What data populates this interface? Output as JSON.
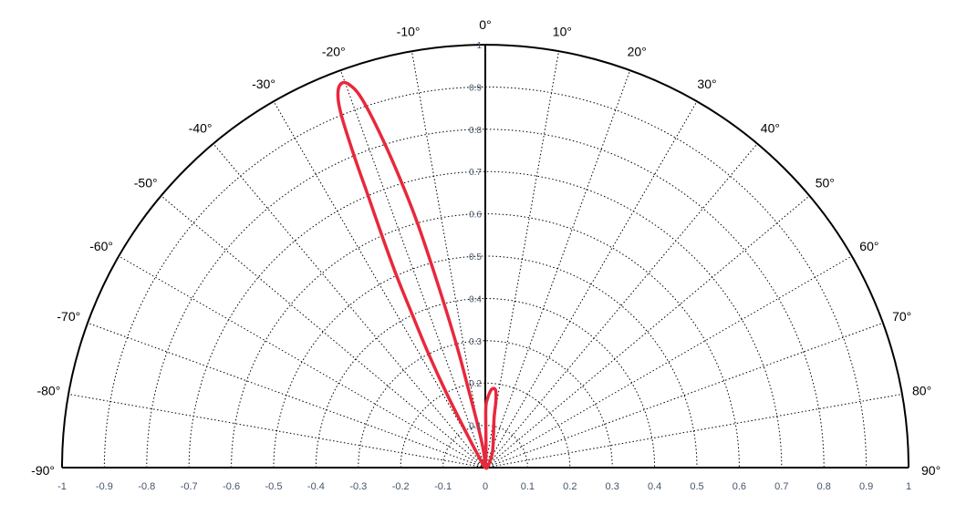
{
  "chart_data": {
    "type": "polar-half",
    "angle_ticks": [
      -90,
      -80,
      -70,
      -60,
      -50,
      -40,
      -30,
      -20,
      -10,
      0,
      10,
      20,
      30,
      40,
      50,
      60,
      70,
      80,
      90
    ],
    "angle_tick_labels": [
      "-90°",
      "-80°",
      "-70°",
      "-60°",
      "-50°",
      "-40°",
      "-30°",
      "-20°",
      "-10°",
      "0°",
      "10°",
      "20°",
      "30°",
      "40°",
      "50°",
      "60°",
      "70°",
      "80°",
      "90°"
    ],
    "radial_ticks": [
      0.1,
      0.2,
      0.3,
      0.4,
      0.5,
      0.6,
      0.7,
      0.8,
      0.9,
      1
    ],
    "radial_tick_labels": [
      "0.1",
      "0.2",
      "0.3",
      "0.4",
      "0.5",
      "0.6",
      "0.7",
      "0.8",
      "0.9",
      "1"
    ],
    "x_ticks": [
      -1,
      -0.9,
      -0.8,
      -0.7,
      -0.6,
      -0.5,
      -0.4,
      -0.3,
      -0.2,
      -0.1,
      0,
      0.1,
      0.2,
      0.3,
      0.4,
      0.5,
      0.6,
      0.7,
      0.8,
      0.9,
      1
    ],
    "x_tick_labels": [
      "-1",
      "-0.9",
      "-0.8",
      "-0.7",
      "-0.6",
      "-0.5",
      "-0.4",
      "-0.3",
      "-0.2",
      "-0.1",
      "0",
      "0.1",
      "0.2",
      "0.3",
      "0.4",
      "0.5",
      "0.6",
      "0.7",
      "0.8",
      "0.9",
      "1"
    ],
    "r_range": [
      0,
      1
    ],
    "angle_range": [
      -90,
      90
    ],
    "grid": true,
    "series": [
      {
        "color": "#e8283c",
        "points": [
          {
            "angle": 0,
            "r": 0
          },
          {
            "angle": -6,
            "r": 0.04
          },
          {
            "angle": -10,
            "r": 0.1
          },
          {
            "angle": -12,
            "r": 0.18
          },
          {
            "angle": -13.2,
            "r": 0.3
          },
          {
            "angle": -14.5,
            "r": 0.45
          },
          {
            "angle": -15.5,
            "r": 0.6
          },
          {
            "angle": -16.5,
            "r": 0.72
          },
          {
            "angle": -17.5,
            "r": 0.83
          },
          {
            "angle": -18.5,
            "r": 0.92
          },
          {
            "angle": -19.5,
            "r": 0.96
          },
          {
            "angle": -20.5,
            "r": 0.97
          },
          {
            "angle": -21.5,
            "r": 0.95
          },
          {
            "angle": -22.2,
            "r": 0.9
          },
          {
            "angle": -22.8,
            "r": 0.8
          },
          {
            "angle": -23.3,
            "r": 0.7
          },
          {
            "angle": -24,
            "r": 0.6
          },
          {
            "angle": -24.8,
            "r": 0.5
          },
          {
            "angle": -25.5,
            "r": 0.4
          },
          {
            "angle": -26.5,
            "r": 0.3
          },
          {
            "angle": -27.5,
            "r": 0.2
          },
          {
            "angle": -28.5,
            "r": 0.1
          },
          {
            "angle": -30,
            "r": 0.04
          },
          {
            "angle": 0,
            "r": 0
          },
          {
            "angle": 45,
            "r": 0.012
          },
          {
            "angle": 25,
            "r": 0.04
          },
          {
            "angle": 14,
            "r": 0.08
          },
          {
            "angle": 10,
            "r": 0.12
          },
          {
            "angle": 9,
            "r": 0.16
          },
          {
            "angle": 7.5,
            "r": 0.185
          },
          {
            "angle": 4.5,
            "r": 0.185
          },
          {
            "angle": 1.5,
            "r": 0.16
          },
          {
            "angle": 0.5,
            "r": 0.14
          },
          {
            "angle": 1,
            "r": 0.08
          },
          {
            "angle": 3,
            "r": 0.03
          },
          {
            "angle": 0,
            "r": 0
          }
        ]
      }
    ]
  }
}
